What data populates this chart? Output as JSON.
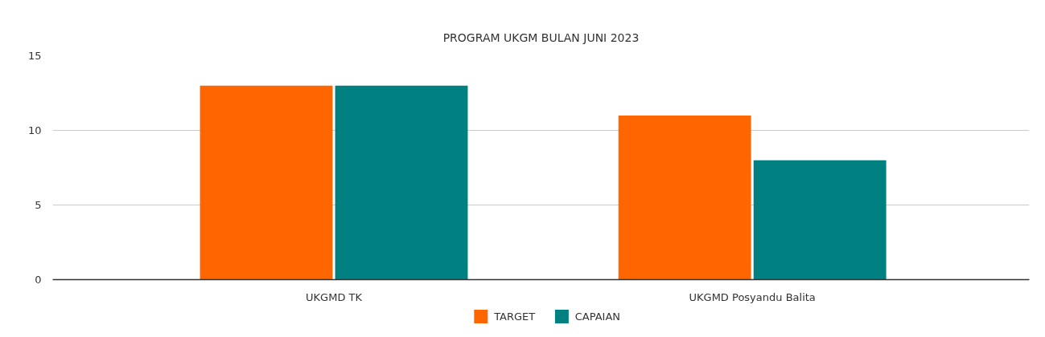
{
  "chart_data": {
    "type": "bar",
    "title": "PROGRAM UKGM BULAN JUNI 2023",
    "categories": [
      "UKGMD TK",
      "UKGMD Posyandu Balita"
    ],
    "series": [
      {
        "name": "TARGET",
        "color": "#ff6600",
        "values": [
          13,
          11
        ]
      },
      {
        "name": "CAPAIAN",
        "color": "#008080",
        "values": [
          13,
          8
        ]
      }
    ],
    "ylim": [
      0,
      15
    ],
    "yticks": [
      0,
      5,
      10,
      15
    ],
    "grid": "y",
    "legend": "bottom"
  }
}
